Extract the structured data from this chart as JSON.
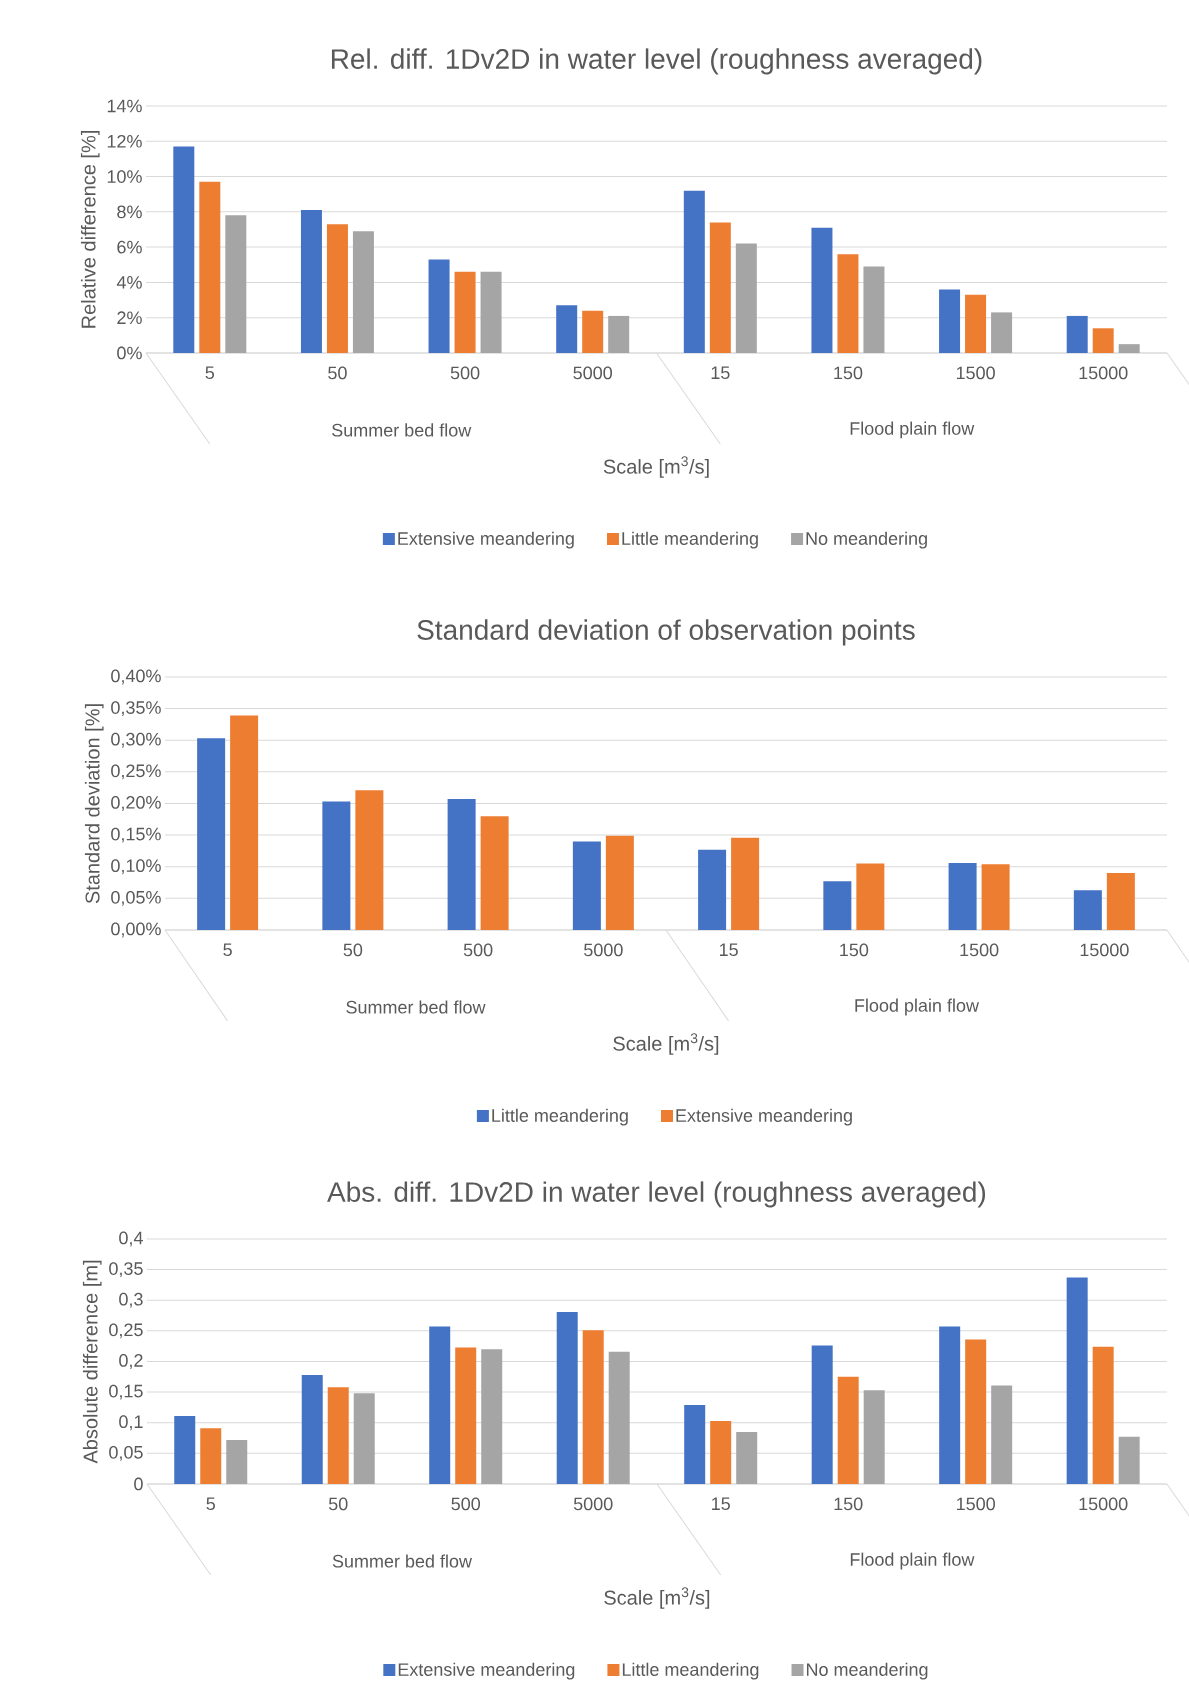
{
  "chart_data": [
    {
      "type": "bar",
      "title": "Rel. diff. 1Dv2D in water level (roughness averaged)",
      "xlabel": "Scale [m$^{3}$/s]",
      "ylabel": "Relative difference [%]",
      "categories": [
        "5",
        "50",
        "500",
        "5000",
        "15",
        "150",
        "1500",
        "15000"
      ],
      "annotations": [
        "Summer bed flow",
        "Flood plain flow"
      ],
      "series": [
        {
          "name": "Extensive meandering",
          "color": "#4472c4",
          "values": [
            11.7,
            8.1,
            5.3,
            2.7,
            9.2,
            7.1,
            3.6,
            2.1
          ]
        },
        {
          "name": "Little meandering",
          "color": "#ed7d31",
          "values": [
            9.7,
            7.3,
            4.6,
            2.4,
            7.4,
            5.6,
            3.3,
            1.4
          ]
        },
        {
          "name": "No meandering",
          "color": "#a5a5a5",
          "values": [
            7.8,
            6.9,
            4.6,
            2.1,
            6.2,
            4.9,
            2.3,
            0.5
          ]
        }
      ],
      "ylim": [
        0,
        14
      ],
      "yticks": [
        {
          "value": 0,
          "label": "0%"
        },
        {
          "value": 2,
          "label": "2%"
        },
        {
          "value": 4,
          "label": "4%"
        },
        {
          "value": 6,
          "label": "6%"
        },
        {
          "value": 8,
          "label": "8%"
        },
        {
          "value": 10,
          "label": "10%"
        },
        {
          "value": 12,
          "label": "12%"
        },
        {
          "value": 14,
          "label": "14%"
        }
      ],
      "grid": "y",
      "legend": "bottom"
    },
    {
      "type": "bar",
      "title": "Standard deviation of observation points",
      "xlabel": "Scale [m$^{3}$/s]",
      "ylabel": "Standard deviation [%]",
      "categories": [
        "5",
        "50",
        "500",
        "5000",
        "15",
        "150",
        "1500",
        "15000"
      ],
      "annotations": [
        "Summer bed flow",
        "Flood plain flow"
      ],
      "series": [
        {
          "name": "Little meandering",
          "color": "#4472c4",
          "values": [
            0.303,
            0.203,
            0.207,
            0.14,
            0.127,
            0.077,
            0.106,
            0.063
          ]
        },
        {
          "name": "Extensive meandering",
          "color": "#ed7d31",
          "values": [
            0.339,
            0.221,
            0.18,
            0.149,
            0.146,
            0.105,
            0.104,
            0.09
          ]
        }
      ],
      "ylim": [
        0,
        0.4
      ],
      "yticks": [
        {
          "value": 0,
          "label": "0,00%"
        },
        {
          "value": 0.05,
          "label": "0,05%"
        },
        {
          "value": 0.1,
          "label": "0,10%"
        },
        {
          "value": 0.15,
          "label": "0,15%"
        },
        {
          "value": 0.2,
          "label": "0,20%"
        },
        {
          "value": 0.25,
          "label": "0,25%"
        },
        {
          "value": 0.3,
          "label": "0,30%"
        },
        {
          "value": 0.35,
          "label": "0,35%"
        },
        {
          "value": 0.4,
          "label": "0,40%"
        }
      ],
      "grid": "y",
      "legend": "bottom"
    },
    {
      "type": "bar",
      "title": "Abs. diff.  1Dv2D in water level (roughness averaged)",
      "xlabel": "Scale [m$^{3}$/s]",
      "ylabel": "Absolute difference [m]",
      "categories": [
        "5",
        "50",
        "500",
        "5000",
        "15",
        "150",
        "1500",
        "15000"
      ],
      "annotations": [
        "Summer bed flow",
        "Flood plain flow"
      ],
      "series": [
        {
          "name": "Extensive meandering",
          "color": "#4472c4",
          "values": [
            0.111,
            0.178,
            0.257,
            0.281,
            0.129,
            0.226,
            0.257,
            0.337
          ]
        },
        {
          "name": "Little meandering",
          "color": "#ed7d31",
          "values": [
            0.091,
            0.158,
            0.223,
            0.251,
            0.103,
            0.175,
            0.236,
            0.224
          ]
        },
        {
          "name": "No meandering",
          "color": "#a5a5a5",
          "values": [
            0.072,
            0.148,
            0.22,
            0.216,
            0.085,
            0.153,
            0.161,
            0.077
          ]
        }
      ],
      "ylim": [
        0,
        0.4
      ],
      "yticks": [
        0,
        {
          "value": 0.05,
          "label": "0,05"
        },
        {
          "value": 0.1,
          "label": "0,1"
        },
        {
          "value": 0.15,
          "label": "0,15"
        },
        {
          "value": 0.2,
          "label": "0,2"
        },
        {
          "value": 0.25,
          "label": "0,25"
        },
        {
          "value": 0.3,
          "label": "0,3"
        },
        {
          "value": 0.35,
          "label": "0,35"
        },
        {
          "value": 0.4,
          "label": "0,4"
        }
      ],
      "grid": "y",
      "legend": "bottom"
    }
  ]
}
